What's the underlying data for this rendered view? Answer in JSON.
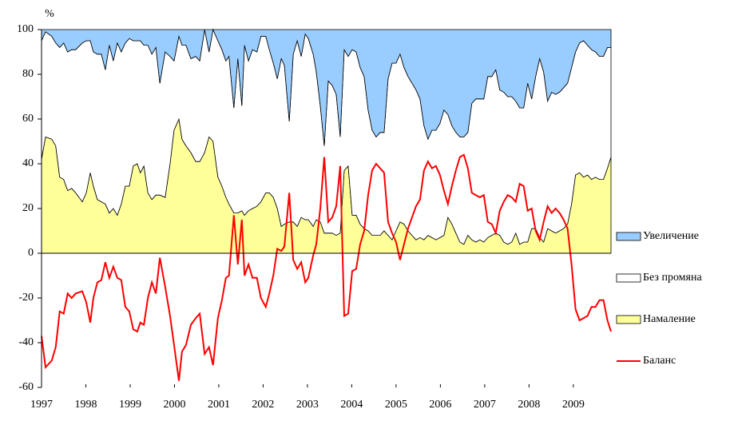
{
  "chart_data": {
    "type": "area",
    "y_label": "%",
    "x": [
      1997.0,
      1997.09,
      1997.23,
      1997.32,
      1997.41,
      1997.5,
      1997.59,
      1997.68,
      1997.77,
      1997.92,
      1998.01,
      1998.1,
      1998.17,
      1998.26,
      1998.35,
      1998.44,
      1998.53,
      1998.62,
      1998.71,
      1998.8,
      1998.89,
      1998.98,
      1999.07,
      1999.16,
      1999.23,
      1999.31,
      1999.4,
      1999.49,
      1999.58,
      1999.67,
      1999.79,
      1999.9,
      1999.99,
      2000.1,
      2000.17,
      2000.26,
      2000.37,
      2000.48,
      2000.57,
      2000.68,
      2000.78,
      2000.87,
      2000.98,
      2001.07,
      2001.16,
      2001.23,
      2001.34,
      2001.43,
      2001.52,
      2001.58,
      2001.67,
      2001.76,
      2001.86,
      2001.95,
      2002.06,
      2002.14,
      2002.23,
      2002.32,
      2002.41,
      2002.48,
      2002.59,
      2002.68,
      2002.77,
      2002.86,
      2002.95,
      2003.02,
      2003.13,
      2003.2,
      2003.29,
      2003.38,
      2003.47,
      2003.56,
      2003.65,
      2003.74,
      2003.83,
      2003.92,
      2004.01,
      2004.1,
      2004.19,
      2004.28,
      2004.37,
      2004.46,
      2004.55,
      2004.64,
      2004.73,
      2004.82,
      2004.91,
      2005.0,
      2005.09,
      2005.18,
      2005.27,
      2005.36,
      2005.45,
      2005.54,
      2005.63,
      2005.72,
      2005.81,
      2005.9,
      2005.99,
      2006.08,
      2006.17,
      2006.26,
      2006.35,
      2006.44,
      2006.53,
      2006.62,
      2006.71,
      2006.8,
      2006.89,
      2006.98,
      2007.07,
      2007.16,
      2007.25,
      2007.34,
      2007.43,
      2007.52,
      2007.61,
      2007.7,
      2007.79,
      2007.88,
      2007.97,
      2008.06,
      2008.15,
      2008.24,
      2008.33,
      2008.42,
      2008.51,
      2008.6,
      2008.69,
      2008.78,
      2008.87,
      2008.96,
      2009.05,
      2009.14,
      2009.23,
      2009.32,
      2009.41,
      2009.5,
      2009.59,
      2009.68,
      2009.77,
      2009.85
    ],
    "series": [
      {
        "name": "Увеличение",
        "type": "area",
        "color": "#99ccff",
        "values": [
          5,
          1,
          3,
          6,
          8,
          6,
          10,
          9,
          9,
          6,
          5,
          5,
          10,
          11,
          11,
          18,
          7,
          14,
          6,
          10,
          6,
          4,
          5,
          5,
          5,
          7,
          7,
          11,
          8,
          24,
          10,
          12,
          14,
          3,
          7,
          7,
          13,
          12,
          14,
          0,
          10,
          0,
          5,
          9,
          14,
          12,
          35,
          13,
          34,
          7,
          14,
          9,
          10,
          3,
          3,
          9,
          15,
          22,
          13,
          16,
          41,
          11,
          5,
          12,
          2,
          4,
          11,
          19,
          34,
          52,
          23,
          25,
          29,
          48,
          9,
          12,
          9,
          10,
          17,
          21,
          36,
          45,
          48,
          46,
          46,
          22,
          15,
          15,
          11,
          17,
          21,
          24,
          27,
          31,
          43,
          49,
          45,
          45,
          42,
          36,
          38,
          43,
          46,
          48,
          48,
          46,
          33,
          31,
          31,
          31,
          21,
          21,
          18,
          27,
          28,
          30,
          30,
          32,
          35,
          35,
          24,
          31,
          21,
          13,
          19,
          32,
          28,
          29,
          28,
          26,
          24,
          17,
          10,
          6,
          5,
          7,
          9,
          10,
          12,
          12,
          8,
          8
        ]
      },
      {
        "name": "Без промяна",
        "type": "area",
        "color": "#ffffff",
        "values": [
          53,
          47,
          46,
          46,
          58,
          61,
          62,
          62,
          64,
          71,
          68,
          59,
          60,
          65,
          66,
          60,
          75,
          66,
          77,
          68,
          64,
          66,
          56,
          55,
          59,
          54,
          66,
          65,
          66,
          50,
          65,
          48,
          31,
          37,
          42,
          45,
          42,
          47,
          45,
          55,
          38,
          50,
          61,
          61,
          61,
          66,
          47,
          69,
          47,
          76,
          67,
          71,
          69,
          74,
          70,
          64,
          60,
          58,
          75,
          71,
          45,
          75,
          83,
          72,
          83,
          81,
          77,
          66,
          52,
          39,
          68,
          66,
          63,
          43,
          54,
          49,
          74,
          73,
          70,
          68,
          54,
          47,
          44,
          46,
          44,
          70,
          79,
          75,
          75,
          70,
          69,
          68,
          67,
          62,
          51,
          43,
          48,
          49,
          51,
          56,
          46,
          44,
          45,
          47,
          48,
          46,
          61,
          64,
          63,
          64,
          72,
          71,
          73,
          65,
          67,
          66,
          65,
          59,
          61,
          60,
          71,
          58,
          68,
          80,
          76,
          57,
          62,
          62,
          62,
          63,
          63,
          61,
          55,
          58,
          61,
          58,
          58,
          56,
          55,
          55,
          54,
          49
        ]
      },
      {
        "name": "Намаление",
        "type": "area",
        "color": "#ffff99",
        "values": [
          42,
          52,
          51,
          48,
          34,
          33,
          28,
          29,
          27,
          23,
          27,
          36,
          30,
          24,
          23,
          22,
          18,
          20,
          17,
          22,
          30,
          30,
          39,
          40,
          36,
          39,
          27,
          24,
          26,
          26,
          25,
          40,
          55,
          60,
          51,
          48,
          45,
          41,
          41,
          45,
          52,
          50,
          34,
          30,
          25,
          22,
          18,
          18,
          19,
          17,
          19,
          20,
          21,
          23,
          27,
          27,
          25,
          20,
          12,
          13,
          14,
          14,
          12,
          16,
          15,
          15,
          12,
          15,
          14,
          9,
          9,
          9,
          8,
          9,
          37,
          39,
          17,
          17,
          13,
          11,
          10,
          8,
          8,
          8,
          10,
          8,
          6,
          10,
          14,
          13,
          10,
          8,
          6,
          7,
          6,
          8,
          7,
          6,
          7,
          8,
          16,
          13,
          9,
          5,
          4,
          8,
          6,
          5,
          6,
          5,
          7,
          8,
          9,
          8,
          5,
          4,
          5,
          9,
          4,
          5,
          5,
          11,
          11,
          7,
          5,
          11,
          10,
          9,
          10,
          11,
          13,
          22,
          35,
          36,
          34,
          35,
          33,
          34,
          33,
          33,
          38,
          43
        ]
      },
      {
        "name": "Баланс",
        "type": "line",
        "color": "#ff0000",
        "values": [
          -37,
          -51,
          -48,
          -42,
          -26,
          -27,
          -18,
          -20,
          -18,
          -17,
          -22,
          -31,
          -20,
          -13,
          -12,
          -4,
          -11,
          -6,
          -11,
          -12,
          -24,
          -26,
          -34,
          -35,
          -31,
          -32,
          -20,
          -13,
          -18,
          -2,
          -15,
          -28,
          -41,
          -57,
          -44,
          -41,
          -32,
          -29,
          -27,
          -45,
          -42,
          -50,
          -29,
          -21,
          -11,
          -10,
          17,
          -5,
          15,
          -10,
          -5,
          -11,
          -11,
          -20,
          -24,
          -18,
          -10,
          2,
          1,
          3,
          27,
          -3,
          -7,
          -4,
          -13,
          -11,
          -1,
          4,
          20,
          43,
          14,
          16,
          21,
          39,
          -28,
          -27,
          -8,
          -7,
          4,
          10,
          26,
          37,
          40,
          38,
          36,
          14,
          9,
          5,
          -3,
          4,
          11,
          16,
          21,
          24,
          37,
          41,
          38,
          39,
          35,
          28,
          22,
          30,
          37,
          43,
          44,
          38,
          27,
          26,
          25,
          26,
          14,
          13,
          9,
          19,
          23,
          26,
          25,
          23,
          31,
          30,
          19,
          20,
          10,
          6,
          14,
          21,
          18,
          20,
          18,
          15,
          11,
          -5,
          -25,
          -30,
          -29,
          -28,
          -24,
          -24,
          -21,
          -21,
          -30,
          -35
        ]
      }
    ],
    "xlim": [
      1997,
      2009.85
    ],
    "xticks": [
      1997,
      1998,
      1999,
      2000,
      2001,
      2002,
      2003,
      2004,
      2005,
      2006,
      2007,
      2008,
      2009
    ],
    "ylim": [
      -60,
      100
    ],
    "yticks": [
      -60,
      -40,
      -20,
      0,
      20,
      40,
      60,
      80,
      100
    ],
    "legend": "right"
  }
}
